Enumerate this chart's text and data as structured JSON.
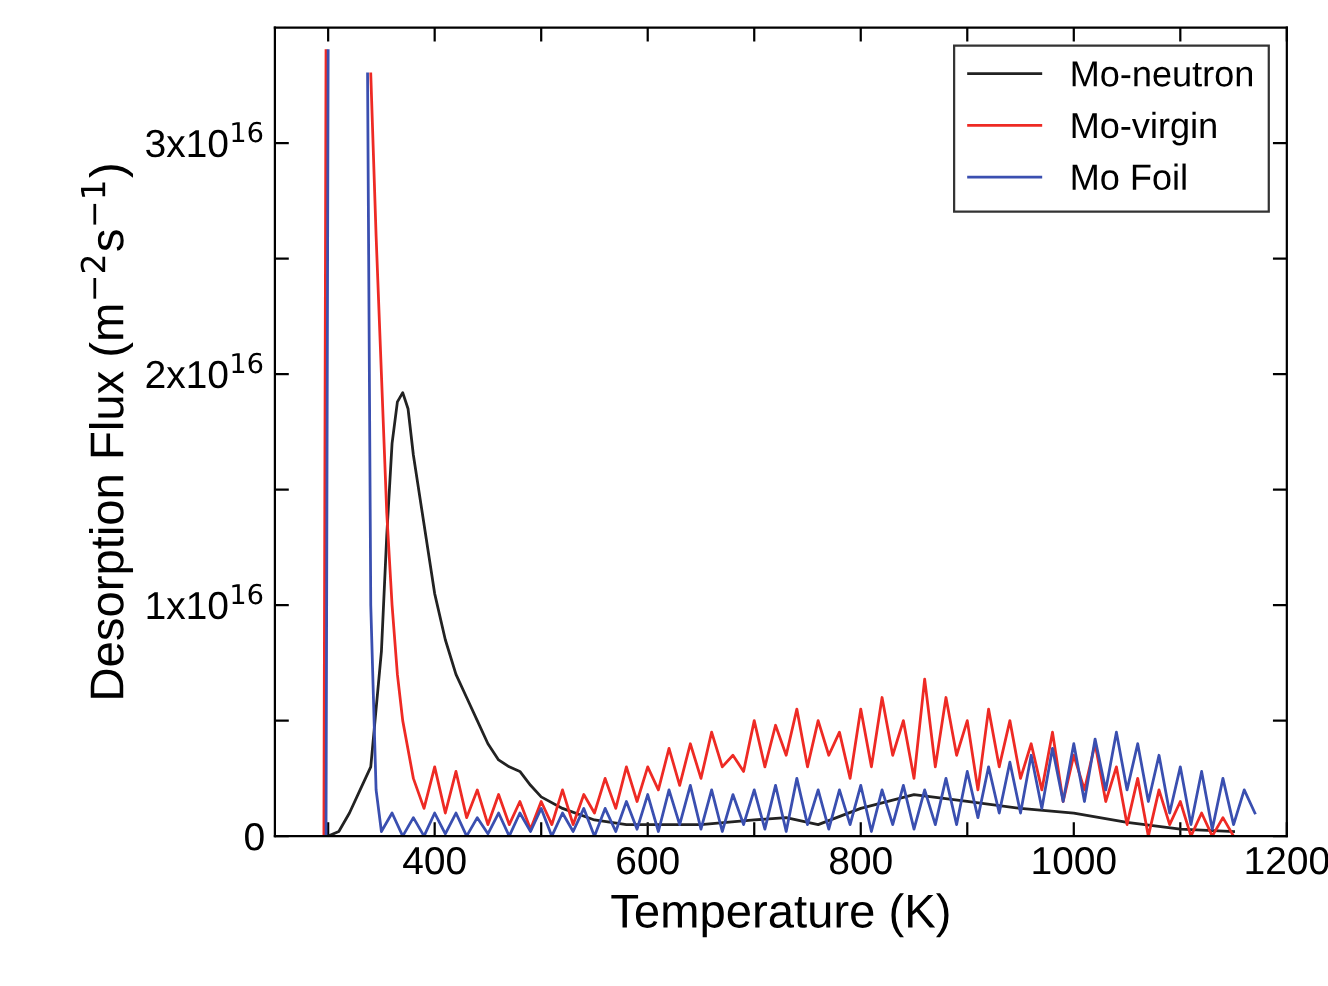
{
  "chart_data": {
    "type": "line",
    "xlabel": "Temperature (K)",
    "ylabel": "Desorption Flux (m$^{−2}$s$^{−1}$)",
    "legend": "top right",
    "grid": false,
    "marker": "none",
    "line_style": "solid",
    "xlim": [
      250,
      1200
    ],
    "ylim": [
      0,
      3.5e+16
    ],
    "xticks": [
      {
        "value": 300,
        "label": null
      },
      400,
      {
        "value": 500,
        "label": null
      },
      600,
      {
        "value": 700,
        "label": null
      },
      800,
      {
        "value": 900,
        "label": null
      },
      1000,
      {
        "value": 1100,
        "label": null
      },
      1200
    ],
    "yticks": [
      0,
      {
        "value": 5000000000000000.0,
        "label": null
      },
      {
        "value": 1e+16,
        "label": "1x10$^{16}$"
      },
      {
        "value": 1.5e+16,
        "label": null
      },
      {
        "value": 2e+16,
        "label": "2x10$^{16}$"
      },
      {
        "value": 2.5e+16,
        "label": null
      },
      {
        "value": 3e+16,
        "label": "3x10$^{16}$"
      }
    ],
    "series": [
      {
        "name": "Mo-neutron",
        "color": "#222222",
        "x": [
          300,
          310,
          320,
          330,
          340,
          350,
          355,
          360,
          365,
          370,
          375,
          380,
          390,
          400,
          410,
          420,
          430,
          440,
          450,
          460,
          470,
          480,
          490,
          500,
          520,
          550,
          580,
          600,
          650,
          700,
          730,
          760,
          800,
          850,
          900,
          950,
          1000,
          1050,
          1100,
          1150
        ],
        "values": [
          0,
          200000000000000.0,
          1000000000000000.0,
          2000000000000000.0,
          3000000000000000.0,
          8000000000000000.0,
          1.3e+16,
          1.7e+16,
          1.88e+16,
          1.92e+16,
          1.85e+16,
          1.65e+16,
          1.35e+16,
          1.05e+16,
          8500000000000000.0,
          7000000000000000.0,
          6000000000000000.0,
          5000000000000000.0,
          4000000000000000.0,
          3300000000000000.0,
          3000000000000000.0,
          2800000000000000.0,
          2200000000000000.0,
          1700000000000000.0,
          1200000000000000.0,
          700000000000000.0,
          500000000000000.0,
          500000000000000.0,
          500000000000000.0,
          700000000000000.0,
          800000000000000.0,
          500000000000000.0,
          1200000000000000.0,
          1800000000000000.0,
          1500000000000000.0,
          1200000000000000.0,
          1000000000000000.0,
          600000000000000.0,
          300000000000000.0,
          200000000000000.0
        ]
      },
      {
        "name": "Mo-virgin",
        "color": "#ee2a24",
        "x": [
          296,
          298,
          299,
          338,
          340,
          345,
          350,
          355,
          360,
          365,
          370,
          380,
          390,
          400,
          410,
          420,
          430,
          440,
          450,
          460,
          470,
          480,
          490,
          500,
          510,
          520,
          530,
          540,
          550,
          560,
          570,
          580,
          590,
          600,
          610,
          620,
          630,
          640,
          650,
          660,
          670,
          680,
          690,
          700,
          710,
          720,
          730,
          740,
          750,
          760,
          770,
          780,
          790,
          800,
          810,
          820,
          830,
          840,
          850,
          860,
          870,
          880,
          890,
          900,
          910,
          920,
          930,
          940,
          950,
          960,
          970,
          980,
          990,
          1000,
          1010,
          1020,
          1030,
          1040,
          1050,
          1060,
          1070,
          1080,
          1090,
          1100,
          1110,
          1120,
          1130,
          1140,
          1150
        ],
        "values": [
          0,
          3.4e+16,
          null,
          null,
          3.3e+16,
          2.6e+16,
          2e+16,
          1.4e+16,
          1e+16,
          7000000000000000.0,
          5000000000000000.0,
          2500000000000000.0,
          1200000000000000.0,
          3000000000000000.0,
          1000000000000000.0,
          2800000000000000.0,
          800000000000000.0,
          2000000000000000.0,
          500000000000000.0,
          1800000000000000.0,
          500000000000000.0,
          1500000000000000.0,
          300000000000000.0,
          1500000000000000.0,
          500000000000000.0,
          2000000000000000.0,
          500000000000000.0,
          1800000000000000.0,
          1000000000000000.0,
          2500000000000000.0,
          1200000000000000.0,
          3000000000000000.0,
          1500000000000000.0,
          3000000000000000.0,
          2000000000000000.0,
          3800000000000000.0,
          2200000000000000.0,
          4000000000000000.0,
          2500000000000000.0,
          4500000000000000.0,
          3000000000000000.0,
          3500000000000000.0,
          2800000000000000.0,
          5000000000000000.0,
          3000000000000000.0,
          4800000000000000.0,
          3500000000000000.0,
          5500000000000000.0,
          3000000000000000.0,
          5000000000000000.0,
          3500000000000000.0,
          4500000000000000.0,
          2500000000000000.0,
          5500000000000000.0,
          3000000000000000.0,
          6000000000000000.0,
          3500000000000000.0,
          5000000000000000.0,
          2500000000000000.0,
          6800000000000000.0,
          3000000000000000.0,
          6000000000000000.0,
          3500000000000000.0,
          5000000000000000.0,
          2000000000000000.0,
          5500000000000000.0,
          3000000000000000.0,
          5000000000000000.0,
          2500000000000000.0,
          4000000000000000.0,
          2000000000000000.0,
          4500000000000000.0,
          1500000000000000.0,
          3500000000000000.0,
          2000000000000000.0,
          4000000000000000.0,
          1500000000000000.0,
          3000000000000000.0,
          500000000000000.0,
          2500000000000000.0,
          0,
          2000000000000000.0,
          500000000000000.0,
          1500000000000000.0,
          0,
          1000000000000000.0,
          0,
          800000000000000.0,
          0
        ]
      },
      {
        "name": "Mo Foil",
        "color": "#3a4fb0",
        "x": [
          298,
          300,
          301,
          335,
          337,
          340,
          345,
          350,
          360,
          370,
          380,
          390,
          400,
          410,
          420,
          430,
          440,
          450,
          460,
          470,
          480,
          490,
          500,
          510,
          520,
          530,
          540,
          550,
          560,
          570,
          580,
          590,
          600,
          610,
          620,
          630,
          640,
          650,
          660,
          670,
          680,
          690,
          700,
          710,
          720,
          730,
          740,
          750,
          760,
          770,
          780,
          790,
          800,
          810,
          820,
          830,
          840,
          850,
          860,
          870,
          880,
          890,
          900,
          910,
          920,
          930,
          940,
          950,
          960,
          970,
          980,
          990,
          1000,
          1010,
          1020,
          1030,
          1040,
          1050,
          1060,
          1070,
          1080,
          1090,
          1100,
          1110,
          1120,
          1130,
          1140,
          1150,
          1160,
          1170
        ],
        "values": [
          0,
          3.4e+16,
          null,
          null,
          3.3e+16,
          1e+16,
          2000000000000000.0,
          200000000000000.0,
          1000000000000000.0,
          0,
          800000000000000.0,
          0,
          1000000000000000.0,
          100000000000000.0,
          1000000000000000.0,
          0,
          800000000000000.0,
          100000000000000.0,
          1000000000000000.0,
          0,
          1000000000000000.0,
          200000000000000.0,
          1200000000000000.0,
          0,
          1000000000000000.0,
          200000000000000.0,
          1200000000000000.0,
          0,
          1200000000000000.0,
          200000000000000.0,
          1500000000000000.0,
          300000000000000.0,
          1800000000000000.0,
          200000000000000.0,
          2000000000000000.0,
          500000000000000.0,
          2200000000000000.0,
          300000000000000.0,
          2000000000000000.0,
          200000000000000.0,
          1800000000000000.0,
          500000000000000.0,
          2000000000000000.0,
          300000000000000.0,
          2200000000000000.0,
          200000000000000.0,
          2500000000000000.0,
          500000000000000.0,
          2000000000000000.0,
          300000000000000.0,
          2000000000000000.0,
          500000000000000.0,
          2200000000000000.0,
          200000000000000.0,
          2000000000000000.0,
          500000000000000.0,
          2200000000000000.0,
          300000000000000.0,
          2000000000000000.0,
          500000000000000.0,
          2500000000000000.0,
          500000000000000.0,
          2800000000000000.0,
          800000000000000.0,
          3000000000000000.0,
          1000000000000000.0,
          3200000000000000.0,
          1000000000000000.0,
          3500000000000000.0,
          1200000000000000.0,
          3800000000000000.0,
          1500000000000000.0,
          4000000000000000.0,
          1500000000000000.0,
          4200000000000000.0,
          2000000000000000.0,
          4500000000000000.0,
          2000000000000000.0,
          4000000000000000.0,
          1500000000000000.0,
          3500000000000000.0,
          1000000000000000.0,
          3000000000000000.0,
          500000000000000.0,
          2800000000000000.0,
          300000000000000.0,
          2500000000000000.0,
          500000000000000.0,
          2000000000000000.0,
          1000000000000000.0
        ]
      }
    ]
  }
}
